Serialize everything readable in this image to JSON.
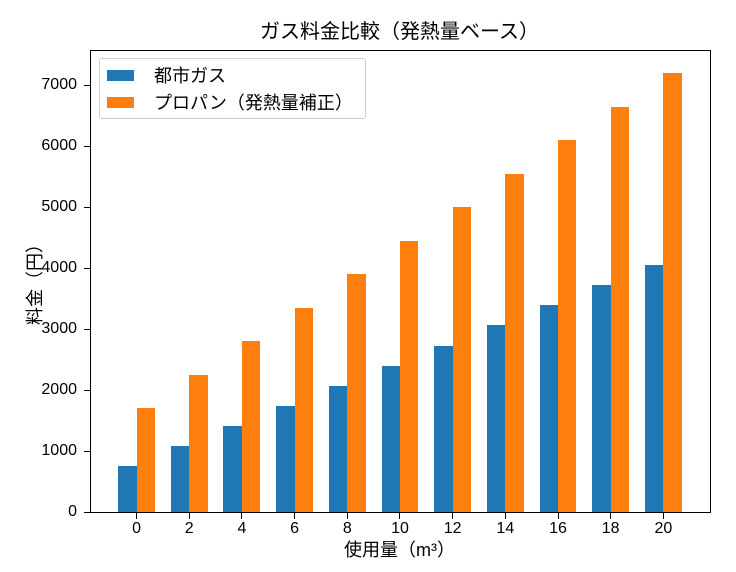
{
  "chart_data": {
    "type": "bar",
    "title": "ガス料金比較（発熱量ベース）",
    "xlabel": "使用量（m³）",
    "ylabel": "料金（円）",
    "categories": [
      0,
      2,
      4,
      6,
      8,
      10,
      12,
      14,
      16,
      18,
      20
    ],
    "series": [
      {
        "name": "都市ガス",
        "color": "#1f77b4",
        "values": [
          750,
          1080,
          1410,
          1740,
          2070,
          2400,
          2730,
          3060,
          3390,
          3720,
          4050
        ]
      },
      {
        "name": "プロパン（発熱量補正）",
        "color": "#ff7f0e",
        "values": [
          1700,
          2250,
          2800,
          3350,
          3900,
          4450,
          5000,
          5550,
          6100,
          6650,
          7200
        ]
      }
    ],
    "yticks": [
      0,
      1000,
      2000,
      3000,
      4000,
      5000,
      6000,
      7000
    ],
    "ylim": [
      0,
      7560
    ],
    "xlim": [
      -1.73,
      21.77
    ],
    "bar_width_units": 0.7,
    "legend_position": "upper left",
    "grid": false,
    "frame_color": "#000000",
    "background": "#ffffff"
  }
}
